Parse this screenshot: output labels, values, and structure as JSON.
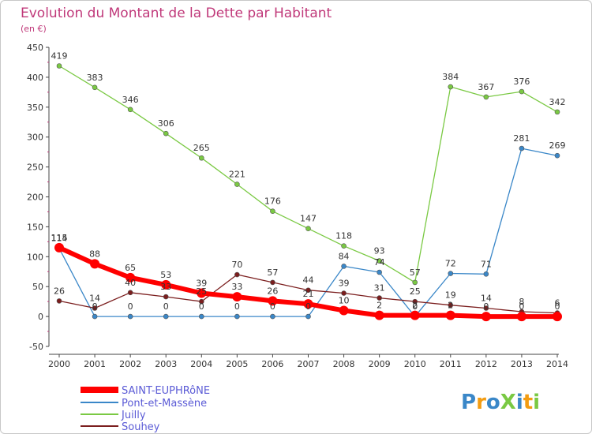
{
  "chart_data": {
    "type": "line",
    "title": "Evolution du Montant de la Dette par Habitant",
    "subtitle": "(en €)",
    "xlabel": "",
    "ylabel": "",
    "categories": [
      "2000",
      "2001",
      "2002",
      "2003",
      "2004",
      "2005",
      "2006",
      "2007",
      "2008",
      "2009",
      "2010",
      "2011",
      "2012",
      "2013",
      "2014"
    ],
    "yticks": [
      -50,
      0,
      50,
      100,
      150,
      200,
      250,
      300,
      350,
      400,
      450
    ],
    "ylim": [
      -50,
      450
    ],
    "grid": false,
    "legend_position": "bottom-left",
    "series": [
      {
        "name": "SAINT-EUPHRôNE",
        "color": "#ff0000",
        "values": [
          115,
          88,
          65,
          53,
          39,
          33,
          26,
          21,
          10,
          2,
          2,
          2,
          0,
          0,
          0
        ],
        "labels": [
          "115",
          "88",
          "65",
          "53",
          "39",
          "33",
          "26",
          "21",
          "10",
          "2",
          "2",
          "2",
          "0",
          "0",
          "0"
        ]
      },
      {
        "name": "Pont-et-Massène",
        "color": "#3a87c8",
        "values": [
          114,
          0,
          0,
          0,
          0,
          0,
          0,
          0,
          84,
          74,
          0,
          72,
          71,
          281,
          269
        ],
        "labels": [
          "114",
          "0",
          "0",
          "0",
          "0",
          "0",
          "0",
          "0",
          "84",
          "74",
          "0",
          "72",
          "71",
          "281",
          "269"
        ]
      },
      {
        "name": "Juilly",
        "color": "#7ac943",
        "values": [
          419,
          383,
          346,
          306,
          265,
          221,
          176,
          147,
          118,
          93,
          57,
          384,
          367,
          376,
          342
        ],
        "labels": [
          "419",
          "383",
          "346",
          "306",
          "265",
          "221",
          "176",
          "147",
          "118",
          "93",
          "57",
          "384",
          "367",
          "376",
          "342"
        ]
      },
      {
        "name": "Souhey",
        "color": "#7b1e1e",
        "values": [
          26,
          14,
          40,
          33,
          25,
          70,
          57,
          44,
          39,
          31,
          25,
          19,
          14,
          8,
          6
        ],
        "labels": [
          "26",
          "14",
          "40",
          "33",
          "25",
          "70",
          "57",
          "44",
          "39",
          "31",
          "25",
          "19",
          "14",
          "8",
          "6"
        ]
      }
    ]
  },
  "brand": {
    "logo_text": "ProXiti"
  }
}
